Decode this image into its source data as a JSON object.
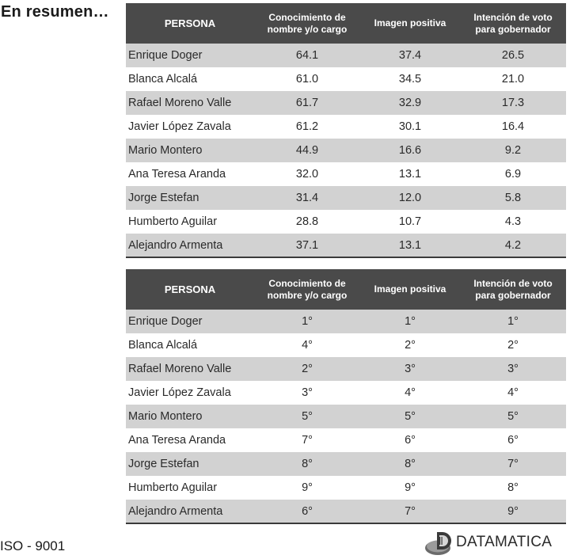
{
  "page": {
    "title": "En resumen…"
  },
  "columns": {
    "persona": "PERSONA",
    "conocimiento_line1": "Conocimiento de",
    "conocimiento_line2": "nombre y/o cargo",
    "imagen": "Imagen positiva",
    "intencion_line1": "Intención de voto",
    "intencion_line2": "para gobernador"
  },
  "table_values": {
    "rows": [
      {
        "persona": "Enrique Doger",
        "conocimiento": "64.1",
        "imagen": "37.4",
        "intencion": "26.5"
      },
      {
        "persona": "Blanca Alcalá",
        "conocimiento": "61.0",
        "imagen": "34.5",
        "intencion": "21.0"
      },
      {
        "persona": "Rafael Moreno Valle",
        "conocimiento": "61.7",
        "imagen": "32.9",
        "intencion": "17.3"
      },
      {
        "persona": "Javier López Zavala",
        "conocimiento": "61.2",
        "imagen": "30.1",
        "intencion": "16.4"
      },
      {
        "persona": "Mario Montero",
        "conocimiento": "44.9",
        "imagen": "16.6",
        "intencion": "9.2"
      },
      {
        "persona": "Ana Teresa Aranda",
        "conocimiento": "32.0",
        "imagen": "13.1",
        "intencion": "6.9"
      },
      {
        "persona": "Jorge Estefan",
        "conocimiento": "31.4",
        "imagen": "12.0",
        "intencion": "5.8"
      },
      {
        "persona": "Humberto Aguilar",
        "conocimiento": "28.8",
        "imagen": "10.7",
        "intencion": "4.3"
      },
      {
        "persona": "Alejandro Armenta",
        "conocimiento": "37.1",
        "imagen": "13.1",
        "intencion": "4.2"
      }
    ]
  },
  "table_ranks": {
    "rows": [
      {
        "persona": "Enrique Doger",
        "conocimiento": "1°",
        "imagen": "1°",
        "intencion": "1°"
      },
      {
        "persona": "Blanca Alcalá",
        "conocimiento": "4°",
        "imagen": "2°",
        "intencion": "2°"
      },
      {
        "persona": "Rafael Moreno Valle",
        "conocimiento": "2°",
        "imagen": "3°",
        "intencion": "3°"
      },
      {
        "persona": "Javier López Zavala",
        "conocimiento": "3°",
        "imagen": "4°",
        "intencion": "4°"
      },
      {
        "persona": "Mario Montero",
        "conocimiento": "5°",
        "imagen": "5°",
        "intencion": "5°"
      },
      {
        "persona": "Ana Teresa Aranda",
        "conocimiento": "7°",
        "imagen": "6°",
        "intencion": "6°"
      },
      {
        "persona": "Jorge Estefan",
        "conocimiento": "8°",
        "imagen": "8°",
        "intencion": "7°"
      },
      {
        "persona": "Humberto Aguilar",
        "conocimiento": "9°",
        "imagen": "9°",
        "intencion": "8°"
      },
      {
        "persona": "Alejandro Armenta",
        "conocimiento": "6°",
        "imagen": "7°",
        "intencion": "9°"
      }
    ]
  },
  "colors": {
    "header_bg": "#4a4a4a",
    "header_text": "#ffffff",
    "row_stripe": "#d2d2d2",
    "row_plain": "#ffffff"
  },
  "footer": {
    "certification": "ISO - 9001",
    "brand_name": "DATAMATICA",
    "brand_icon": "datamatica-logo-icon"
  }
}
